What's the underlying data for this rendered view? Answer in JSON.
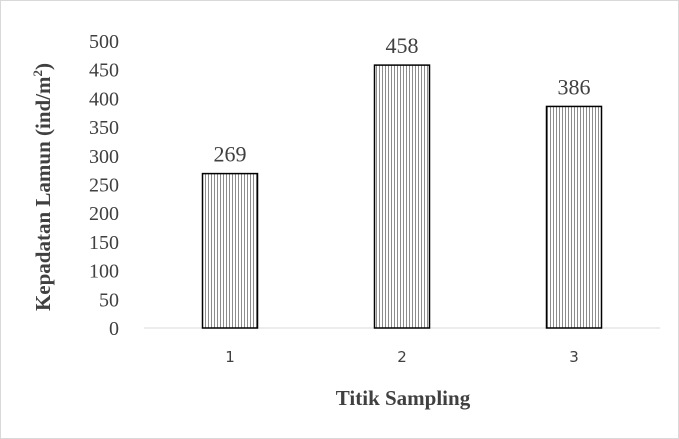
{
  "chart_data": {
    "type": "bar",
    "categories": [
      "1",
      "2",
      "3"
    ],
    "values": [
      269,
      458,
      386
    ],
    "data_labels": [
      "269",
      "458",
      "386"
    ],
    "xlabel": "Titik Sampling",
    "ylabel": {
      "main": "Kepadatan  Lamun (ind/m",
      "superscript": "2",
      "closing": ")"
    },
    "ylim": [
      0,
      500
    ],
    "yticks": [
      "0",
      "50",
      "100",
      "150",
      "200",
      "250",
      "300",
      "350",
      "400",
      "450",
      "500"
    ],
    "grid": false,
    "legend": "none",
    "bar_pattern": "vertical-stripes",
    "colors": {
      "bar_fill": "#ffffff",
      "bar_stripe": "#8c8c8c",
      "bar_outline": "#000000",
      "axis_line": "#d9d9d9",
      "text": "#404040"
    }
  }
}
